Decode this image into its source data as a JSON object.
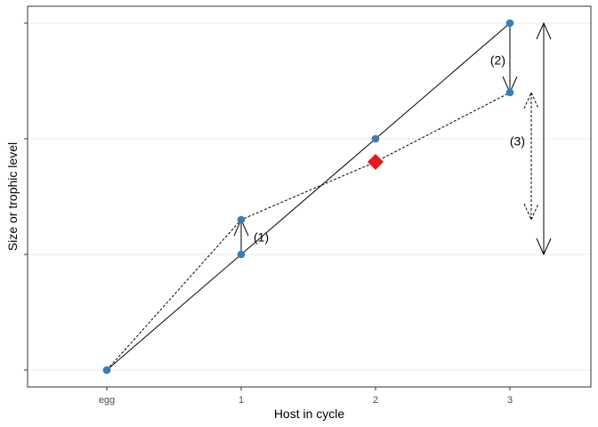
{
  "chart_data": {
    "type": "line",
    "xlabel": "Host in cycle",
    "ylabel": "Size or trophic level",
    "categories": [
      "egg",
      "1",
      "2",
      "3"
    ],
    "ylim": [
      -0.1,
      3.2
    ],
    "y_ticks": [
      0,
      1,
      2,
      3
    ],
    "y_tick_labels_shown": false,
    "grid": "horizontal-major",
    "series": [
      {
        "line_style": "solid",
        "points": [
          {
            "x": "egg",
            "y": 0
          },
          {
            "x": "1",
            "y": 1
          },
          {
            "x": "2",
            "y": 2
          },
          {
            "x": "3",
            "y": 3
          }
        ]
      },
      {
        "line_style": "dashed",
        "points": [
          {
            "x": "egg",
            "y": 0
          },
          {
            "x": "1",
            "y": 1.3
          },
          {
            "x": "2",
            "y": 1.8
          },
          {
            "x": "3",
            "y": 2.4
          }
        ]
      }
    ],
    "highlight_point": {
      "x": "2",
      "y": 1.8,
      "shape": "diamond",
      "color": "#e41a1c"
    },
    "point_color": "#377eb8",
    "annotations": [
      {
        "label": "(1)",
        "x": "1",
        "from": 1,
        "to": 1.3,
        "style": "solid"
      },
      {
        "label": "(2)",
        "x": "3",
        "from": 3,
        "to": 2.4,
        "style": "solid"
      },
      {
        "label": "(3)",
        "from": 1.3,
        "to": 2.4,
        "style": "dashed",
        "double_headed": true
      },
      {
        "label": "",
        "from": 1,
        "to": 3,
        "style": "solid",
        "double_headed": true
      }
    ]
  }
}
